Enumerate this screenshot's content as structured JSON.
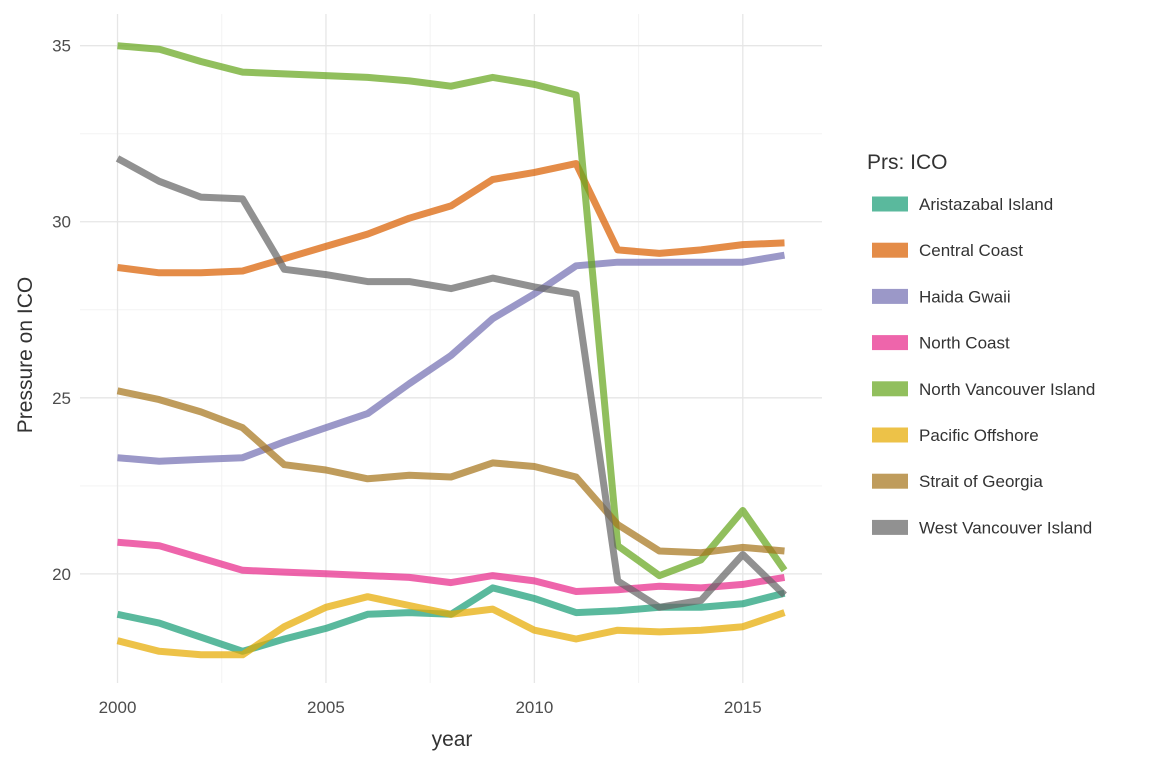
{
  "chart_data": {
    "type": "line",
    "xlabel": "year",
    "ylabel": "Pressure on ICO",
    "legend_title": "Prs: ICO",
    "legend_position": "right",
    "grid": true,
    "x": [
      2000,
      2001,
      2002,
      2003,
      2004,
      2005,
      2006,
      2007,
      2008,
      2009,
      2010,
      2011,
      2012,
      2013,
      2014,
      2015,
      2016
    ],
    "xlim": [
      1999.1,
      2016.9
    ],
    "ylim": [
      16.9,
      35.9
    ],
    "xticks": [
      2000,
      2005,
      2010,
      2015
    ],
    "yticks": [
      20,
      25,
      30,
      35
    ],
    "series": [
      {
        "name": "Aristazabal Island",
        "color": "#1b9e77",
        "values": [
          18.85,
          18.6,
          18.2,
          17.8,
          18.15,
          18.45,
          18.85,
          18.9,
          18.85,
          19.6,
          19.3,
          18.9,
          18.95,
          19.05,
          19.05,
          19.15,
          19.45
        ]
      },
      {
        "name": "Central Coast",
        "color": "#d95f02",
        "values": [
          28.7,
          28.55,
          28.55,
          28.6,
          28.95,
          29.3,
          29.65,
          30.1,
          30.45,
          31.2,
          31.4,
          31.65,
          29.2,
          29.1,
          29.2,
          29.35,
          29.4
        ]
      },
      {
        "name": "Haida Gwaii",
        "color": "#7570b3",
        "values": [
          23.3,
          23.2,
          23.25,
          23.3,
          23.75,
          24.15,
          24.55,
          25.4,
          26.2,
          27.25,
          27.95,
          28.75,
          28.85,
          28.85,
          28.85,
          28.85,
          29.05
        ]
      },
      {
        "name": "North Coast",
        "color": "#e7298a",
        "values": [
          20.9,
          20.8,
          20.45,
          20.1,
          20.05,
          20.0,
          19.95,
          19.9,
          19.75,
          19.95,
          19.8,
          19.5,
          19.55,
          19.65,
          19.6,
          19.7,
          19.9
        ]
      },
      {
        "name": "North Vancouver Island",
        "color": "#66a61e",
        "values": [
          35.0,
          34.9,
          34.55,
          34.25,
          34.2,
          34.15,
          34.1,
          34.0,
          33.85,
          34.1,
          33.9,
          33.6,
          20.8,
          19.95,
          20.4,
          21.8,
          20.1
        ]
      },
      {
        "name": "Pacific Offshore",
        "color": "#e6ab02",
        "values": [
          18.1,
          17.8,
          17.7,
          17.7,
          18.5,
          19.05,
          19.35,
          19.1,
          18.85,
          19.0,
          18.4,
          18.15,
          18.4,
          18.35,
          18.4,
          18.5,
          18.9
        ]
      },
      {
        "name": "Strait of Georgia",
        "color": "#a6761d",
        "values": [
          25.2,
          24.95,
          24.6,
          24.15,
          23.1,
          22.95,
          22.7,
          22.8,
          22.75,
          23.15,
          23.05,
          22.75,
          21.4,
          20.65,
          20.6,
          20.75,
          20.65
        ]
      },
      {
        "name": "West Vancouver Island",
        "color": "#666666",
        "values": [
          31.8,
          31.15,
          30.7,
          30.65,
          28.65,
          28.5,
          28.3,
          28.3,
          28.1,
          28.4,
          28.15,
          27.95,
          19.8,
          19.05,
          19.25,
          20.55,
          19.4
        ]
      }
    ]
  }
}
